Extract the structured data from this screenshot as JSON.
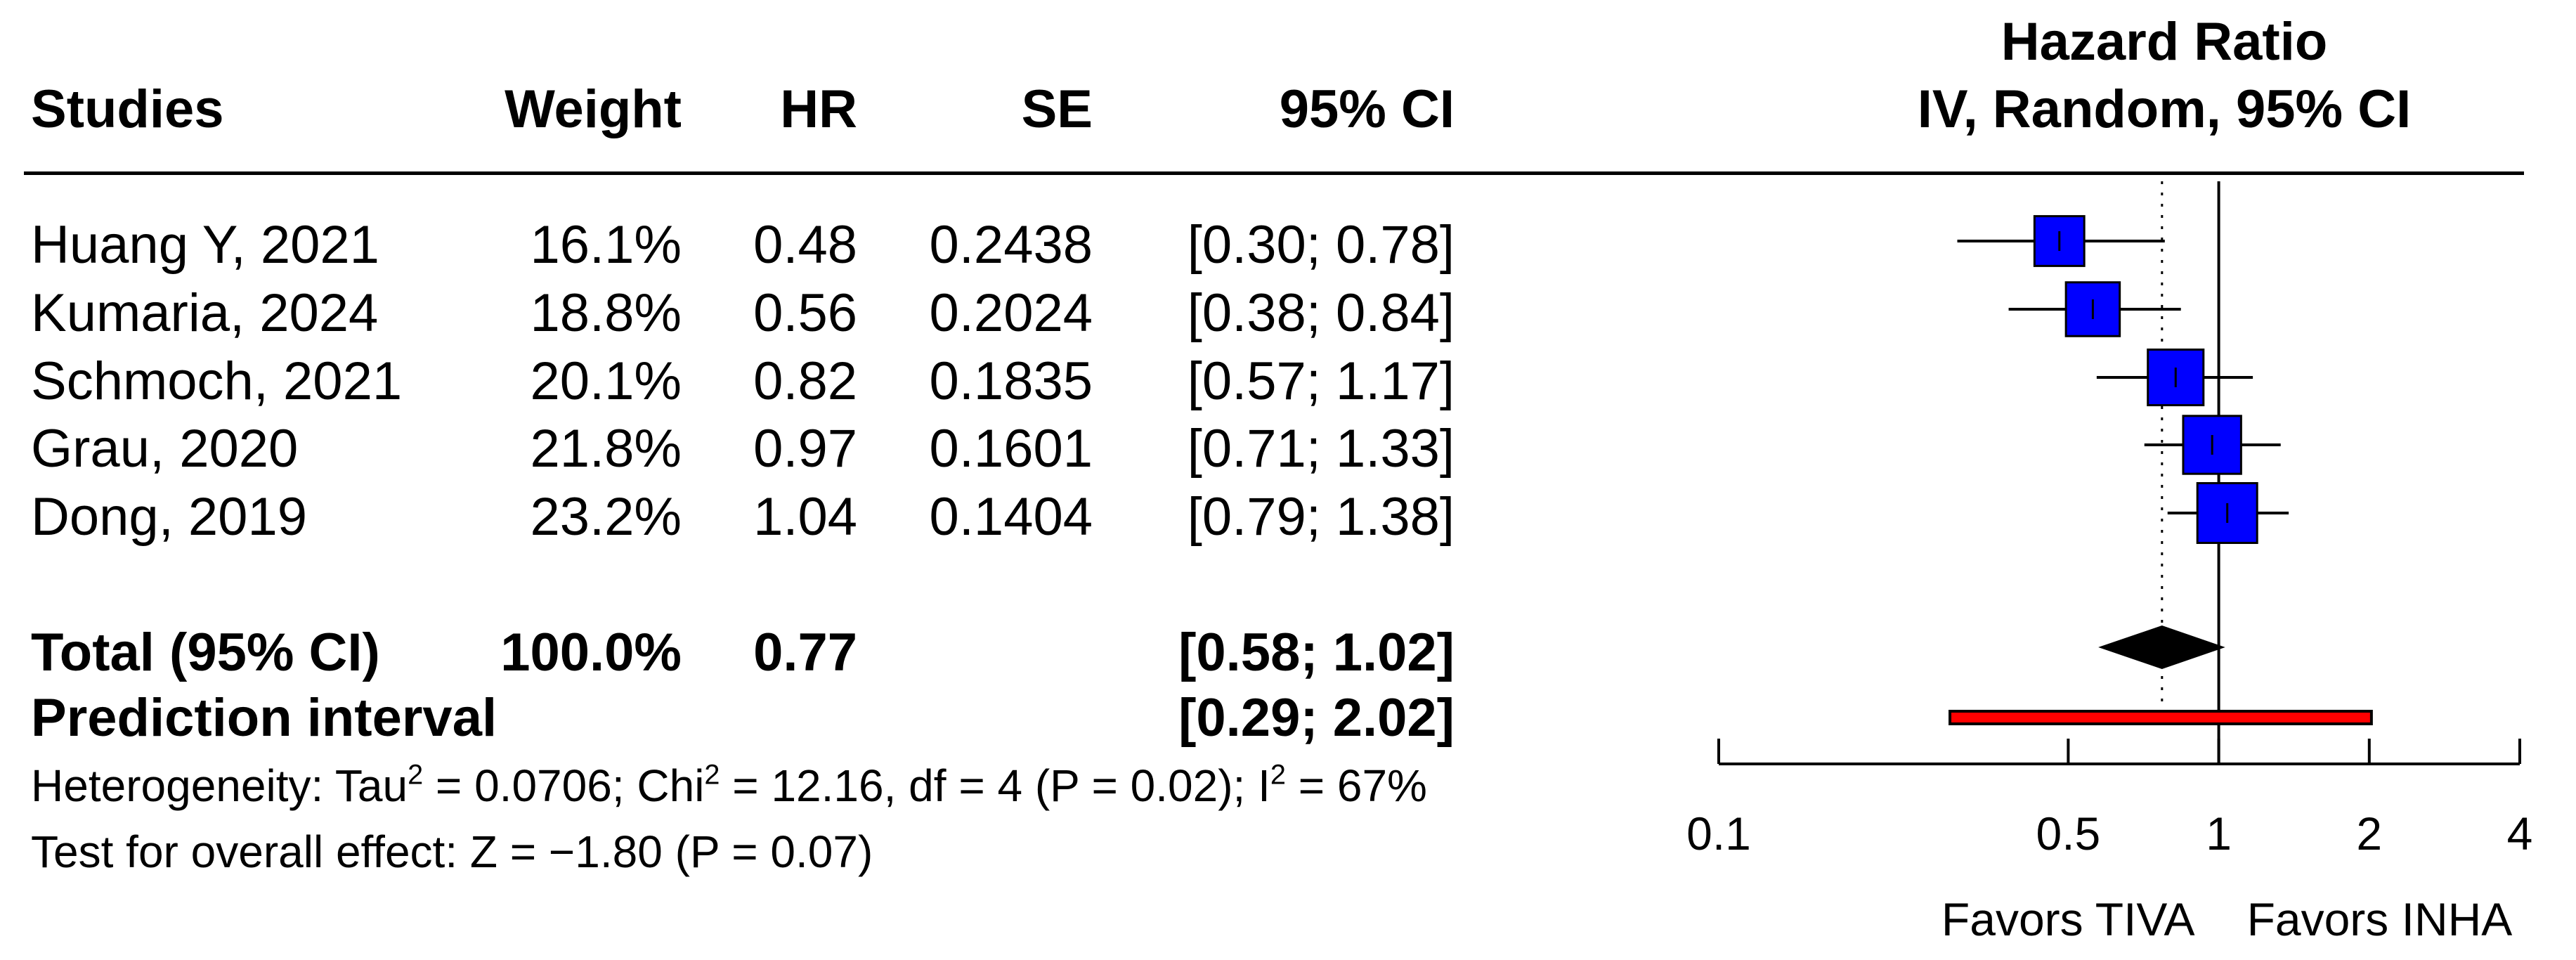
{
  "header": {
    "studies": "Studies",
    "weight": "Weight",
    "hr": "HR",
    "se": "SE",
    "ci": "95% CI",
    "plot_title_1": "Hazard Ratio",
    "plot_title_2": "IV, Random, 95% CI"
  },
  "studies": [
    {
      "name": "Huang Y, 2021",
      "weight": "16.1%",
      "hr": "0.48",
      "se": "0.2438",
      "ci": "[0.30; 0.78]"
    },
    {
      "name": "Kumaria, 2024",
      "weight": "18.8%",
      "hr": "0.56",
      "se": "0.2024",
      "ci": "[0.38; 0.84]"
    },
    {
      "name": "Schmoch, 2021",
      "weight": "20.1%",
      "hr": "0.82",
      "se": "0.1835",
      "ci": "[0.57; 1.17]"
    },
    {
      "name": "Grau, 2020",
      "weight": "21.8%",
      "hr": "0.97",
      "se": "0.1601",
      "ci": "[0.71; 1.33]"
    },
    {
      "name": "Dong, 2019",
      "weight": "23.2%",
      "hr": "1.04",
      "se": "0.1404",
      "ci": "[0.79; 1.38]"
    }
  ],
  "total": {
    "label": "Total (95% CI)",
    "weight": "100.0%",
    "hr": "0.77",
    "ci": "[0.58; 1.02]"
  },
  "prediction": {
    "label": "Prediction interval",
    "ci": "[0.29; 2.02]"
  },
  "heterogeneity": {
    "prefix": "Heterogeneity: Tau",
    "tau_exp": "2",
    "tau_value": " = 0.0706; Chi",
    "chi_exp": "2",
    "chi_value": " = 12.16, df = 4 (P = 0.02); I",
    "i_exp": "2",
    "i_value": " = 67%"
  },
  "overall_effect": "Test for overall effect: Z = −1.80 (P = 0.07)",
  "axis": {
    "tick_labels": [
      "0.1",
      "0.5",
      "1",
      "2",
      "4"
    ],
    "favors_left": "Favors TIVA",
    "favors_right": "Favors INHA"
  },
  "chart_data": {
    "type": "forest",
    "scale": "log",
    "xlim": [
      0.1,
      4
    ],
    "ticks": [
      0.1,
      0.5,
      1,
      2,
      4
    ],
    "null_value": 1,
    "studies": [
      {
        "name": "Huang Y, 2021",
        "hr": 0.48,
        "lower": 0.3,
        "upper": 0.78,
        "weight": 16.1
      },
      {
        "name": "Kumaria, 2024",
        "hr": 0.56,
        "lower": 0.38,
        "upper": 0.84,
        "weight": 18.8
      },
      {
        "name": "Schmoch, 2021",
        "hr": 0.82,
        "lower": 0.57,
        "upper": 1.17,
        "weight": 20.1
      },
      {
        "name": "Grau, 2020",
        "hr": 0.97,
        "lower": 0.71,
        "upper": 1.33,
        "weight": 21.8
      },
      {
        "name": "Dong, 2019",
        "hr": 1.04,
        "lower": 0.79,
        "upper": 1.38,
        "weight": 23.2
      }
    ],
    "pooled": {
      "hr": 0.77,
      "lower": 0.58,
      "upper": 1.02
    },
    "prediction_interval": {
      "lower": 0.29,
      "upper": 2.02
    },
    "colors": {
      "study_box": "#0000ff",
      "pooled_diamond": "#000000",
      "prediction_bar": "#ff0000"
    }
  }
}
